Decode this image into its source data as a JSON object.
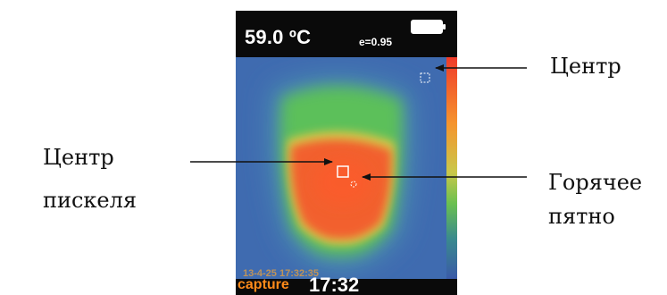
{
  "display": {
    "temperature": "59.0 ºC",
    "emissivity": "e=0.95",
    "timestamp": "13-4-25 17:32:35",
    "mode": "capture",
    "clock": "17:32"
  },
  "labels": {
    "center": "Центр",
    "pixel_center_line1": "Центр",
    "pixel_center_line2": "пискеля",
    "hot_spot_line1": "Горячее",
    "hot_spot_line2": "пятно"
  },
  "colors": {
    "background_cold": "#3f6bb0",
    "mid_green": "#5cc05a",
    "hot_orange": "#f2602e",
    "capture_text": "#ff8a1a"
  }
}
